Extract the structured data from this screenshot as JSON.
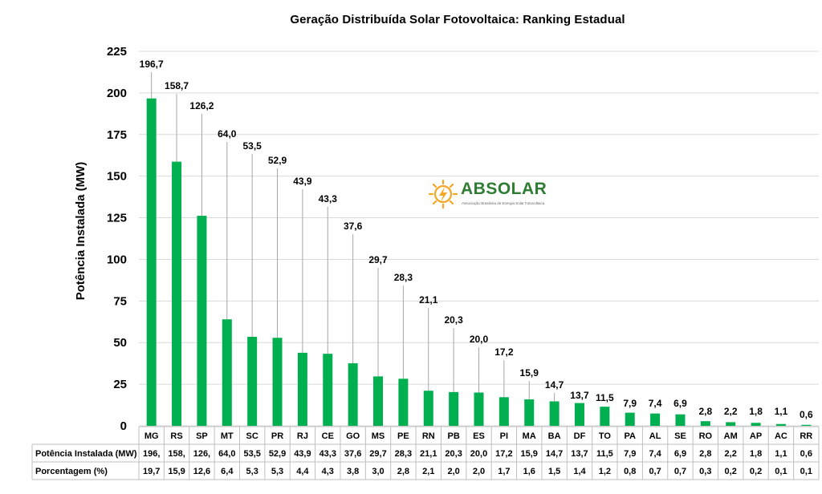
{
  "chart_data": {
    "type": "bar",
    "title": "Geração Distribuída Solar Fotovoltaica: Ranking Estadual",
    "ylabel": "Potência Instalada (MW)",
    "ylim": [
      0,
      225
    ],
    "yticks": [
      "0",
      "25",
      "50",
      "75",
      "100",
      "125",
      "150",
      "175",
      "200",
      "225"
    ],
    "grid": true,
    "bar_color": "#00b050",
    "categories": [
      "MG",
      "RS",
      "SP",
      "MT",
      "SC",
      "PR",
      "RJ",
      "CE",
      "GO",
      "MS",
      "PE",
      "RN",
      "PB",
      "ES",
      "PI",
      "MA",
      "BA",
      "DF",
      "TO",
      "PA",
      "AL",
      "SE",
      "RO",
      "AM",
      "AP",
      "AC",
      "RR"
    ],
    "values": [
      196.7,
      158.7,
      126.2,
      64.0,
      53.5,
      52.9,
      43.9,
      43.3,
      37.6,
      29.7,
      28.3,
      21.1,
      20.3,
      20.0,
      17.2,
      15.9,
      14.7,
      13.7,
      11.5,
      7.9,
      7.4,
      6.9,
      2.8,
      2.2,
      1.8,
      1.1,
      0.6
    ],
    "data_labels": [
      "196,7",
      "158,7",
      "126,2",
      "64,0",
      "53,5",
      "52,9",
      "43,9",
      "43,3",
      "37,6",
      "29,7",
      "28,3",
      "21,1",
      "20,3",
      "20,0",
      "17,2",
      "15,9",
      "14,7",
      "13,7",
      "11,5",
      "7,9",
      "7,4",
      "6,9",
      "2,8",
      "2,2",
      "1,8",
      "1,1",
      "0,6"
    ],
    "table": {
      "rows": [
        {
          "label": "Potência Instalada (MW)",
          "cells": [
            "196,",
            "158,",
            "126,",
            "64,0",
            "53,5",
            "52,9",
            "43,9",
            "43,3",
            "37,6",
            "29,7",
            "28,3",
            "21,1",
            "20,3",
            "20,0",
            "17,2",
            "15,9",
            "14,7",
            "13,7",
            "11,5",
            "7,9",
            "7,4",
            "6,9",
            "2,8",
            "2,2",
            "1,8",
            "1,1",
            "0,6"
          ]
        },
        {
          "label": "Porcentagem (%)",
          "cells": [
            "19,7",
            "15,9",
            "12,6",
            "6,4",
            "5,3",
            "5,3",
            "4,4",
            "4,3",
            "3,8",
            "3,0",
            "2,8",
            "2,1",
            "2,0",
            "2,0",
            "1,7",
            "1,6",
            "1,5",
            "1,4",
            "1,2",
            "0,8",
            "0,7",
            "0,7",
            "0,3",
            "0,2",
            "0,2",
            "0,1",
            "0,1"
          ]
        }
      ]
    }
  },
  "logo": {
    "name": "ABSOLAR",
    "subtitle": "Associação Brasileira de Energia Solar Fotovoltaica",
    "color": "#2e7d32",
    "accent": "#f5a623",
    "icon": "sun-bolt-icon"
  }
}
